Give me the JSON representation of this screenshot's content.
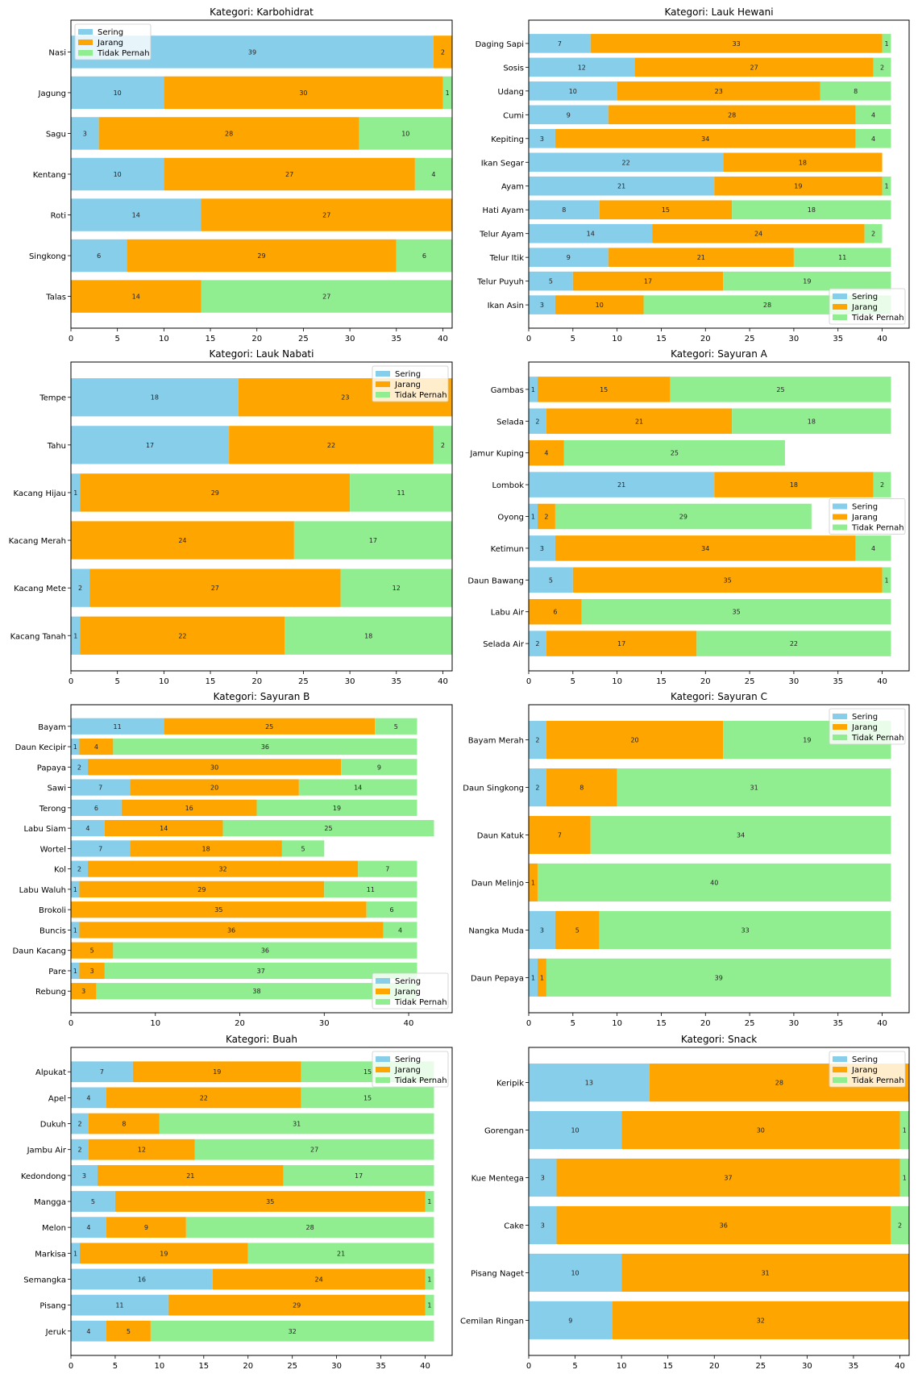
{
  "chart_data": [
    {
      "type": "bar",
      "orientation": "horizontal-stacked",
      "title": "Kategori: Karbohidrat",
      "xlabel": "",
      "ylabel": "",
      "xlim": [
        0,
        41
      ],
      "xticks": [
        0,
        5,
        10,
        15,
        20,
        25,
        30,
        35,
        40
      ],
      "legend_position": "top-left",
      "categories": [
        "Nasi",
        "Jagung",
        "Sagu",
        "Kentang",
        "Roti",
        "Singkong",
        "Talas"
      ],
      "series": [
        {
          "name": "Sering",
          "values": [
            39,
            10,
            3,
            10,
            14,
            6,
            0
          ]
        },
        {
          "name": "Jarang",
          "values": [
            2,
            30,
            28,
            27,
            27,
            29,
            14
          ]
        },
        {
          "name": "Tidak Pernah",
          "values": [
            0,
            1,
            10,
            4,
            0,
            6,
            27
          ]
        }
      ]
    },
    {
      "type": "bar",
      "orientation": "horizontal-stacked",
      "title": "Kategori: Lauk Hewani",
      "xlabel": "",
      "ylabel": "",
      "xlim": [
        0,
        43.05
      ],
      "xticks": [
        0,
        5,
        10,
        15,
        20,
        25,
        30,
        35,
        40
      ],
      "legend_position": "bottom-right",
      "categories": [
        "Daging Sapi",
        "Sosis",
        "Udang",
        "Cumi",
        "Kepiting",
        "Ikan Segar",
        "Ayam",
        "Hati Ayam",
        "Telur Ayam",
        "Telur Itik",
        "Telur Puyuh",
        "Ikan Asin"
      ],
      "series": [
        {
          "name": "Sering",
          "values": [
            7,
            12,
            10,
            9,
            3,
            22,
            21,
            8,
            14,
            9,
            5,
            3
          ]
        },
        {
          "name": "Jarang",
          "values": [
            33,
            27,
            23,
            28,
            34,
            18,
            19,
            15,
            24,
            21,
            17,
            10
          ]
        },
        {
          "name": "Tidak Pernah",
          "values": [
            1,
            2,
            8,
            4,
            4,
            0,
            1,
            18,
            2,
            11,
            19,
            28
          ]
        }
      ]
    },
    {
      "type": "bar",
      "orientation": "horizontal-stacked",
      "title": "Kategori: Lauk Nabati",
      "xlabel": "",
      "ylabel": "",
      "xlim": [
        0,
        41
      ],
      "xticks": [
        0,
        5,
        10,
        15,
        20,
        25,
        30,
        35,
        40
      ],
      "legend_position": "top-right",
      "categories": [
        "Tempe",
        "Tahu",
        "Kacang Hijau",
        "Kacang Merah",
        "Kacang Mete",
        "Kacang Tanah"
      ],
      "series": [
        {
          "name": "Sering",
          "values": [
            18,
            17,
            1,
            0,
            2,
            1
          ]
        },
        {
          "name": "Jarang",
          "values": [
            23,
            22,
            29,
            24,
            27,
            22
          ]
        },
        {
          "name": "Tidak Pernah",
          "values": [
            0,
            2,
            11,
            17,
            12,
            18
          ]
        }
      ]
    },
    {
      "type": "bar",
      "orientation": "horizontal-stacked",
      "title": "Kategori: Sayuran A",
      "xlabel": "",
      "ylabel": "",
      "xlim": [
        0,
        43.05
      ],
      "xticks": [
        0,
        5,
        10,
        15,
        20,
        25,
        30,
        35,
        40
      ],
      "legend_position": "center-right",
      "categories": [
        "Gambas",
        "Selada",
        "Jamur Kuping",
        "Lombok",
        "Oyong",
        "Ketimun",
        "Daun Bawang",
        "Labu Air",
        "Selada Air"
      ],
      "series": [
        {
          "name": "Sering",
          "values": [
            1,
            2,
            0,
            21,
            1,
            3,
            5,
            0,
            2
          ]
        },
        {
          "name": "Jarang",
          "values": [
            15,
            21,
            4,
            18,
            2,
            34,
            35,
            6,
            17
          ]
        },
        {
          "name": "Tidak Pernah",
          "values": [
            25,
            18,
            25,
            2,
            29,
            4,
            1,
            35,
            22
          ]
        }
      ]
    },
    {
      "type": "bar",
      "orientation": "horizontal-stacked",
      "title": "Kategori: Sayuran B",
      "xlabel": "",
      "ylabel": "",
      "xlim": [
        0,
        45.15
      ],
      "xticks": [
        0,
        10,
        20,
        30,
        40
      ],
      "legend_position": "bottom-right",
      "categories": [
        "Bayam",
        "Daun Kecipir",
        "Papaya",
        "Sawi",
        "Terong",
        "Labu Siam",
        "Wortel",
        "Kol",
        "Labu Waluh",
        "Brokoli",
        "Buncis",
        "Daun Kacang",
        "Pare",
        "Rebung"
      ],
      "series": [
        {
          "name": "Sering",
          "values": [
            11,
            1,
            2,
            7,
            6,
            4,
            7,
            2,
            1,
            0,
            1,
            0,
            1,
            0
          ]
        },
        {
          "name": "Jarang",
          "values": [
            25,
            4,
            30,
            20,
            16,
            14,
            18,
            32,
            29,
            35,
            36,
            5,
            3,
            3
          ]
        },
        {
          "name": "Tidak Pernah",
          "values": [
            5,
            36,
            9,
            14,
            19,
            25,
            5,
            7,
            11,
            6,
            4,
            36,
            37,
            38
          ]
        }
      ]
    },
    {
      "type": "bar",
      "orientation": "horizontal-stacked",
      "title": "Kategori: Sayuran C",
      "xlabel": "",
      "ylabel": "",
      "xlim": [
        0,
        43.05
      ],
      "xticks": [
        0,
        5,
        10,
        15,
        20,
        25,
        30,
        35,
        40
      ],
      "legend_position": "top-right",
      "categories": [
        "Bayam Merah",
        "Daun Singkong",
        "Daun Katuk",
        "Daun Melinjo",
        "Nangka Muda",
        "Daun Pepaya"
      ],
      "series": [
        {
          "name": "Sering",
          "values": [
            2,
            2,
            0,
            0,
            3,
            1
          ]
        },
        {
          "name": "Jarang",
          "values": [
            20,
            8,
            7,
            1,
            5,
            1
          ]
        },
        {
          "name": "Tidak Pernah",
          "values": [
            19,
            31,
            34,
            40,
            33,
            39
          ]
        }
      ]
    },
    {
      "type": "bar",
      "orientation": "horizontal-stacked",
      "title": "Kategori: Buah",
      "xlabel": "",
      "ylabel": "",
      "xlim": [
        0,
        43.05
      ],
      "xticks": [
        0,
        5,
        10,
        15,
        20,
        25,
        30,
        35,
        40
      ],
      "legend_position": "top-right",
      "categories": [
        "Alpukat",
        "Apel",
        "Dukuh",
        "Jambu Air",
        "Kedondong",
        "Mangga",
        "Melon",
        "Markisa",
        "Semangka",
        "Pisang",
        "Jeruk"
      ],
      "series": [
        {
          "name": "Sering",
          "values": [
            7,
            4,
            2,
            2,
            3,
            5,
            4,
            1,
            16,
            11,
            4
          ]
        },
        {
          "name": "Jarang",
          "values": [
            19,
            22,
            8,
            12,
            21,
            35,
            9,
            19,
            24,
            29,
            5
          ]
        },
        {
          "name": "Tidak Pernah",
          "values": [
            15,
            15,
            31,
            27,
            17,
            1,
            28,
            21,
            1,
            1,
            32
          ]
        }
      ]
    },
    {
      "type": "bar",
      "orientation": "horizontal-stacked",
      "title": "Kategori: Snack",
      "xlabel": "",
      "ylabel": "",
      "xlim": [
        0,
        41
      ],
      "xticks": [
        0,
        5,
        10,
        15,
        20,
        25,
        30,
        35,
        40
      ],
      "legend_position": "top-right",
      "categories": [
        "Keripik",
        "Gorengan",
        "Kue Mentega",
        "Cake",
        "Pisang Naget",
        "Cemilan Ringan"
      ],
      "series": [
        {
          "name": "Sering",
          "values": [
            13,
            10,
            3,
            3,
            10,
            9
          ]
        },
        {
          "name": "Jarang",
          "values": [
            28,
            30,
            37,
            36,
            31,
            32
          ]
        },
        {
          "name": "Tidak Pernah",
          "values": [
            0,
            1,
            1,
            2,
            0,
            0
          ]
        }
      ]
    }
  ],
  "colors": {
    "Sering": "#87ceeb",
    "Jarang": "#ffa500",
    "Tidak Pernah": "#90ee90"
  }
}
